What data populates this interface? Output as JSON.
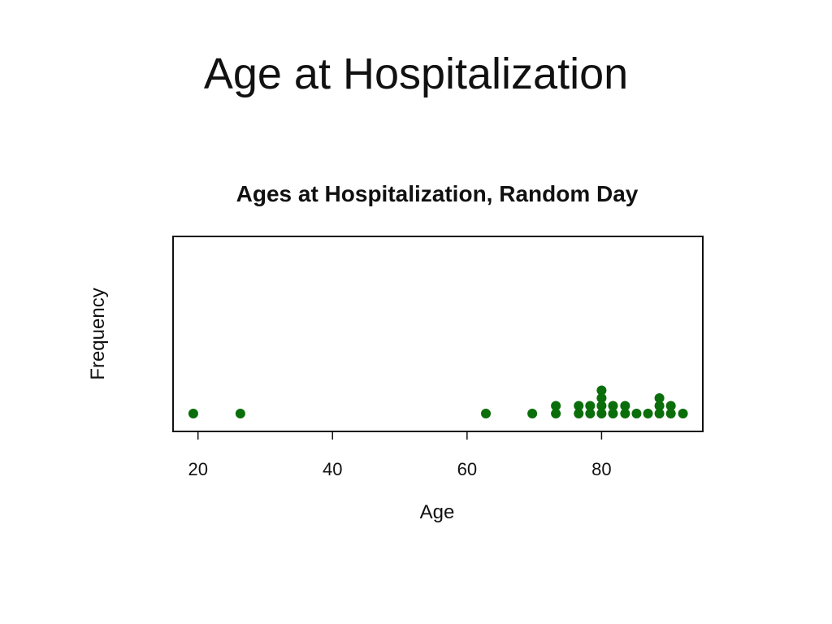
{
  "slide": {
    "title": "Age at Hospitalization"
  },
  "chart_data": {
    "type": "scatter",
    "subtype": "dot-plot",
    "title": "Ages at Hospitalization, Random Day",
    "xlabel": "Age",
    "ylabel": "Frequency",
    "xlim": [
      16,
      95
    ],
    "xticks": [
      20,
      40,
      60,
      80
    ],
    "grid": false,
    "dot_color": "#0a6e0a",
    "stacks": [
      {
        "x": 19.3,
        "count": 1
      },
      {
        "x": 26.3,
        "count": 1
      },
      {
        "x": 62.8,
        "count": 1
      },
      {
        "x": 69.7,
        "count": 1
      },
      {
        "x": 73.2,
        "count": 2
      },
      {
        "x": 76.6,
        "count": 2
      },
      {
        "x": 78.3,
        "count": 2
      },
      {
        "x": 80.0,
        "count": 4
      },
      {
        "x": 81.7,
        "count": 2
      },
      {
        "x": 83.5,
        "count": 2
      },
      {
        "x": 85.2,
        "count": 1
      },
      {
        "x": 86.9,
        "count": 1
      },
      {
        "x": 88.6,
        "count": 3
      },
      {
        "x": 90.3,
        "count": 2
      },
      {
        "x": 92.1,
        "count": 1
      }
    ]
  }
}
